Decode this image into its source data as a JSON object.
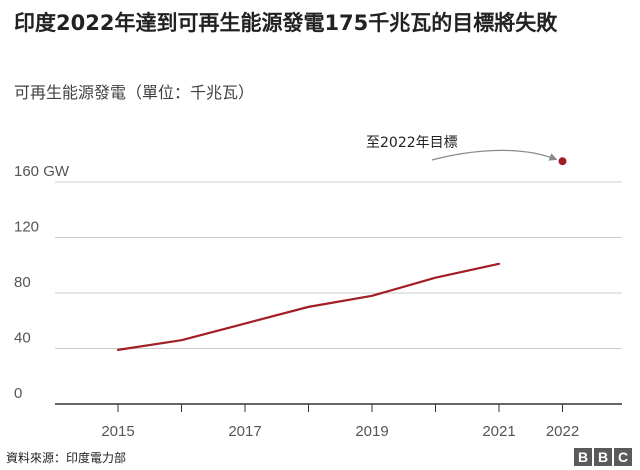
{
  "title": "印度2022年達到可再生能源發電175千兆瓦的目標將失敗",
  "subtitle": "可再生能源發電（單位：千兆瓦）",
  "source": "資料來源：印度電力部",
  "logo": [
    "B",
    "B",
    "C"
  ],
  "colors": {
    "line": "#a31d24",
    "target_point": "#a31d24",
    "grid": "#cccccc",
    "axis": "#333333",
    "arrow": "#8a8a8a"
  },
  "chart_data": {
    "type": "line",
    "title": "印度2022年達到可再生能源發電175千兆瓦的目標將失敗",
    "subtitle": "可再生能源發電（單位：千兆瓦）",
    "xlabel": "",
    "ylabel": "",
    "xlim": [
      2015,
      2022
    ],
    "ylim": [
      0,
      175
    ],
    "x_ticks": [
      2015,
      2016,
      2017,
      2018,
      2019,
      2020,
      2021,
      2022
    ],
    "x_tick_labels": [
      {
        "x": 2015,
        "label": "2015"
      },
      {
        "x": 2017,
        "label": "2017"
      },
      {
        "x": 2019,
        "label": "2019"
      },
      {
        "x": 2021,
        "label": "2021"
      },
      {
        "x": 2022,
        "label": "2022"
      }
    ],
    "y_ticks": [
      {
        "y": 0,
        "label": "0"
      },
      {
        "y": 40,
        "label": "40"
      },
      {
        "y": 80,
        "label": "80"
      },
      {
        "y": 120,
        "label": "120"
      },
      {
        "y": 160,
        "label": "160 GW"
      }
    ],
    "grid": true,
    "series": [
      {
        "x": [
          2015,
          2016,
          2017,
          2018,
          2019,
          2020,
          2021
        ],
        "values": [
          39,
          46,
          58,
          70,
          78,
          91,
          101
        ]
      }
    ],
    "target": {
      "x": 2022,
      "y": 175,
      "label": "至2022年目標"
    }
  }
}
